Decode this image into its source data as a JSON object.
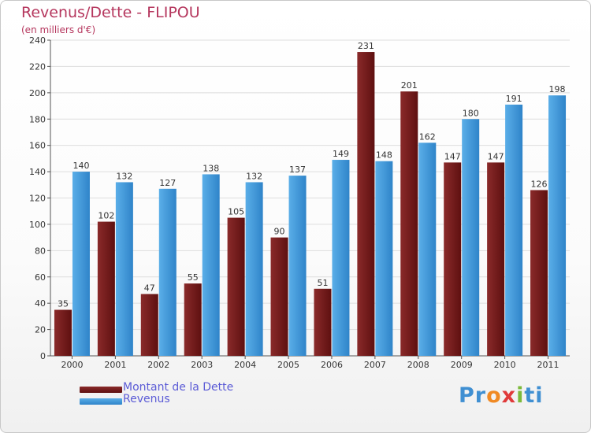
{
  "header": {
    "title": "Revenus/Dette - FLIPOU",
    "subtitle": "(en milliers d'€)"
  },
  "colors": {
    "dette": "#7a1f1f",
    "revenus": "#4a9fe0",
    "title": "#b5365d",
    "legend_text": "#5b5bd6"
  },
  "chart_data": {
    "type": "bar",
    "title": "Revenus/Dette - FLIPOU",
    "ylabel": "(en milliers d'€)",
    "categories": [
      "2000",
      "2001",
      "2002",
      "2003",
      "2004",
      "2005",
      "2006",
      "2007",
      "2008",
      "2009",
      "2010",
      "2011"
    ],
    "series": [
      {
        "name": "Montant de la Dette",
        "values": [
          35,
          102,
          47,
          55,
          105,
          90,
          51,
          231,
          201,
          147,
          147,
          126
        ]
      },
      {
        "name": "Revenus",
        "values": [
          140,
          132,
          127,
          138,
          132,
          137,
          149,
          148,
          162,
          180,
          191,
          198
        ]
      }
    ],
    "ylim": [
      0,
      240
    ],
    "yticks": [
      0,
      20,
      40,
      60,
      80,
      100,
      120,
      140,
      160,
      180,
      200,
      220,
      240
    ],
    "grid": true,
    "legend": "bottom-left"
  },
  "logo": {
    "text_parts": [
      "Pr",
      "o",
      "x",
      "i",
      "ti"
    ]
  }
}
